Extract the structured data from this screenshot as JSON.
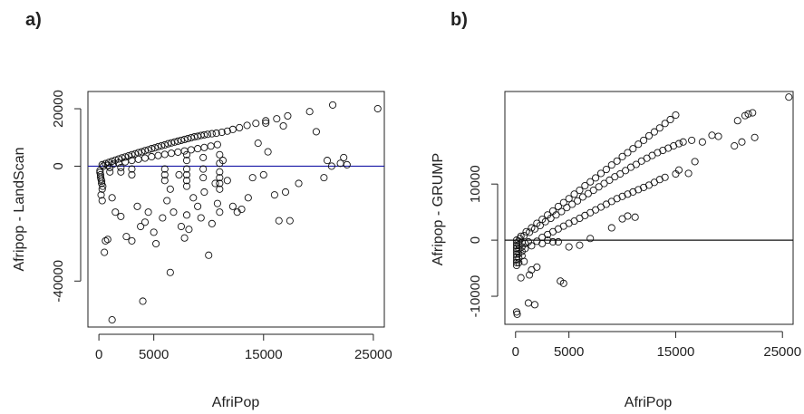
{
  "chart_data": [
    {
      "type": "scatter",
      "panel_label": "a)",
      "xlabel": "AfriPop",
      "ylabel": "Afripop - LandScan",
      "xlim": [
        -1000,
        26000
      ],
      "ylim": [
        -56000,
        26000
      ],
      "xticks": [
        0,
        5000,
        15000,
        25000
      ],
      "yticks": [
        -40000,
        0,
        20000
      ],
      "xtick_labels": [
        "0",
        "5000",
        "15000",
        "25000"
      ],
      "ytick_labels": [
        "-40000",
        "0",
        "20000"
      ],
      "reference_line": {
        "y": 0,
        "color": "#1a1aa6"
      },
      "marker_color": "#111111",
      "points": [
        [
          300,
          500
        ],
        [
          600,
          900
        ],
        [
          900,
          1300
        ],
        [
          1200,
          1700
        ],
        [
          1500,
          2100
        ],
        [
          1800,
          2500
        ],
        [
          2100,
          2900
        ],
        [
          2400,
          3200
        ],
        [
          2700,
          3600
        ],
        [
          3000,
          4000
        ],
        [
          3300,
          4300
        ],
        [
          3600,
          4700
        ],
        [
          3900,
          5000
        ],
        [
          4200,
          5400
        ],
        [
          4500,
          5700
        ],
        [
          4800,
          6100
        ],
        [
          5100,
          6400
        ],
        [
          5400,
          6800
        ],
        [
          5700,
          7100
        ],
        [
          6000,
          7400
        ],
        [
          6300,
          7800
        ],
        [
          6600,
          8100
        ],
        [
          6900,
          8400
        ],
        [
          7200,
          8700
        ],
        [
          7500,
          9000
        ],
        [
          7800,
          9300
        ],
        [
          8100,
          9600
        ],
        [
          8400,
          9900
        ],
        [
          8700,
          10200
        ],
        [
          9000,
          10400
        ],
        [
          9300,
          10700
        ],
        [
          9600,
          10900
        ],
        [
          9900,
          11100
        ],
        [
          10300,
          11300
        ],
        [
          10700,
          11500
        ],
        [
          11200,
          11800
        ],
        [
          11700,
          12200
        ],
        [
          12200,
          12800
        ],
        [
          12800,
          13400
        ],
        [
          13500,
          14200
        ],
        [
          14300,
          14900
        ],
        [
          15200,
          15800
        ],
        [
          16200,
          16500
        ],
        [
          17200,
          17500
        ],
        [
          19200,
          19000
        ],
        [
          21300,
          21300
        ],
        [
          25400,
          20000
        ],
        [
          400,
          0
        ],
        [
          800,
          300
        ],
        [
          1300,
          700
        ],
        [
          1800,
          1100
        ],
        [
          2400,
          1500
        ],
        [
          3000,
          2000
        ],
        [
          3600,
          2400
        ],
        [
          4200,
          2800
        ],
        [
          4800,
          3300
        ],
        [
          5400,
          3700
        ],
        [
          6000,
          4100
        ],
        [
          6600,
          4500
        ],
        [
          7200,
          4900
        ],
        [
          7800,
          5300
        ],
        [
          8400,
          5700
        ],
        [
          9000,
          6100
        ],
        [
          9600,
          6500
        ],
        [
          10200,
          7000
        ],
        [
          10800,
          7500
        ],
        [
          100,
          -1500
        ],
        [
          150,
          -3000
        ],
        [
          200,
          -4500
        ],
        [
          250,
          -6000
        ],
        [
          300,
          -8000
        ],
        [
          200,
          -10000
        ],
        [
          300,
          -12000
        ],
        [
          100,
          -2200
        ],
        [
          150,
          -3800
        ],
        [
          250,
          -5200
        ],
        [
          350,
          -7000
        ],
        [
          600,
          -26000
        ],
        [
          800,
          -25500
        ],
        [
          500,
          -30000
        ],
        [
          1200,
          -53500
        ],
        [
          4000,
          -47000
        ],
        [
          6500,
          -37000
        ],
        [
          1200,
          -11000
        ],
        [
          1500,
          -16000
        ],
        [
          2000,
          -17500
        ],
        [
          2500,
          -24500
        ],
        [
          3000,
          -26000
        ],
        [
          3500,
          -14000
        ],
        [
          3800,
          -21000
        ],
        [
          4200,
          -19500
        ],
        [
          4500,
          -16000
        ],
        [
          5000,
          -23000
        ],
        [
          5200,
          -27000
        ],
        [
          5800,
          -18000
        ],
        [
          6200,
          -12000
        ],
        [
          6500,
          -8000
        ],
        [
          6800,
          -16000
        ],
        [
          7300,
          -3000
        ],
        [
          7500,
          -21000
        ],
        [
          7800,
          -25000
        ],
        [
          8000,
          -17000
        ],
        [
          8200,
          -22000
        ],
        [
          8600,
          -11000
        ],
        [
          9000,
          -14000
        ],
        [
          9300,
          -18000
        ],
        [
          9600,
          -9000
        ],
        [
          10000,
          -31000
        ],
        [
          10300,
          -20000
        ],
        [
          10600,
          -6000
        ],
        [
          10800,
          -13000
        ],
        [
          11000,
          -16000
        ],
        [
          11300,
          2000
        ],
        [
          11700,
          -5000
        ],
        [
          12200,
          -14000
        ],
        [
          12600,
          -16000
        ],
        [
          13000,
          -15000
        ],
        [
          13600,
          -11000
        ],
        [
          14000,
          -4000
        ],
        [
          14500,
          8000
        ],
        [
          15000,
          -3000
        ],
        [
          15400,
          5000
        ],
        [
          16000,
          -10000
        ],
        [
          16400,
          -19000
        ],
        [
          17000,
          -9000
        ],
        [
          17400,
          -19000
        ],
        [
          18200,
          -6000
        ],
        [
          20500,
          -4000
        ],
        [
          20800,
          2000
        ],
        [
          21200,
          0
        ],
        [
          22000,
          1000
        ],
        [
          22300,
          3000
        ],
        [
          22600,
          500
        ],
        [
          19800,
          12000
        ],
        [
          16800,
          14000
        ],
        [
          15200,
          15000
        ],
        [
          11000,
          1000
        ],
        [
          11000,
          -2000
        ],
        [
          11000,
          -4000
        ],
        [
          11000,
          -6000
        ],
        [
          11000,
          -8000
        ],
        [
          11000,
          4000
        ],
        [
          8000,
          -1000
        ],
        [
          8000,
          -3000
        ],
        [
          8000,
          -5000
        ],
        [
          8000,
          -7000
        ],
        [
          8000,
          2000
        ],
        [
          8000,
          4000
        ],
        [
          9500,
          -1000
        ],
        [
          9500,
          -4000
        ],
        [
          9500,
          3000
        ],
        [
          6000,
          -1000
        ],
        [
          6000,
          -3000
        ],
        [
          6000,
          -5000
        ],
        [
          3000,
          -1000
        ],
        [
          3000,
          -3000
        ],
        [
          2000,
          -500
        ],
        [
          2000,
          -2000
        ],
        [
          1000,
          -500
        ],
        [
          1000,
          -2000
        ]
      ]
    },
    {
      "type": "scatter",
      "panel_label": "b)",
      "xlabel": "AfriPop",
      "ylabel": "Afripop - GRUMP",
      "xlim": [
        -1000,
        26000
      ],
      "ylim": [
        -15000,
        26500
      ],
      "xticks": [
        0,
        5000,
        15000,
        25000
      ],
      "yticks": [
        -10000,
        0,
        10000
      ],
      "xtick_labels": [
        "0",
        "5000",
        "15000",
        "25000"
      ],
      "ytick_labels": [
        "-10000",
        "0",
        "10000"
      ],
      "reference_line": {
        "y": 0,
        "color": "#111111"
      },
      "marker_color": "#111111",
      "points": [
        [
          500,
          700
        ],
        [
          1000,
          1500
        ],
        [
          1500,
          2200
        ],
        [
          2000,
          3000
        ],
        [
          2500,
          3700
        ],
        [
          3000,
          4500
        ],
        [
          3500,
          5200
        ],
        [
          4000,
          6000
        ],
        [
          4500,
          6700
        ],
        [
          5000,
          7400
        ],
        [
          5500,
          8200
        ],
        [
          6000,
          8900
        ],
        [
          6500,
          9700
        ],
        [
          7000,
          10400
        ],
        [
          7500,
          11100
        ],
        [
          8000,
          11900
        ],
        [
          8500,
          12600
        ],
        [
          9000,
          13400
        ],
        [
          9500,
          14100
        ],
        [
          10000,
          14900
        ],
        [
          10500,
          15600
        ],
        [
          11000,
          16300
        ],
        [
          11500,
          17100
        ],
        [
          12000,
          17800
        ],
        [
          12500,
          18600
        ],
        [
          13000,
          19300
        ],
        [
          13500,
          20000
        ],
        [
          14000,
          20800
        ],
        [
          14500,
          21500
        ],
        [
          15000,
          22300
        ],
        [
          400,
          300
        ],
        [
          800,
          800
        ],
        [
          1300,
          1400
        ],
        [
          1800,
          2000
        ],
        [
          2300,
          2600
        ],
        [
          2800,
          3300
        ],
        [
          3300,
          3900
        ],
        [
          3800,
          4500
        ],
        [
          4300,
          5100
        ],
        [
          4800,
          5800
        ],
        [
          5300,
          6400
        ],
        [
          5800,
          7000
        ],
        [
          6300,
          7700
        ],
        [
          6800,
          8300
        ],
        [
          7300,
          8900
        ],
        [
          7800,
          9500
        ],
        [
          8300,
          10100
        ],
        [
          8800,
          10700
        ],
        [
          9300,
          11300
        ],
        [
          9800,
          11800
        ],
        [
          10300,
          12400
        ],
        [
          10800,
          13000
        ],
        [
          11300,
          13500
        ],
        [
          11800,
          14100
        ],
        [
          12300,
          14600
        ],
        [
          12800,
          15100
        ],
        [
          13300,
          15600
        ],
        [
          13800,
          16000
        ],
        [
          14300,
          16400
        ],
        [
          14800,
          16800
        ],
        [
          15300,
          17200
        ],
        [
          15700,
          17500
        ],
        [
          16500,
          17800
        ],
        [
          18400,
          18700
        ],
        [
          19000,
          18500
        ],
        [
          20800,
          21300
        ],
        [
          21500,
          22200
        ],
        [
          21800,
          22500
        ],
        [
          22200,
          22700
        ],
        [
          22400,
          18300
        ],
        [
          25600,
          25500
        ],
        [
          2500,
          500
        ],
        [
          3000,
          1000
        ],
        [
          3500,
          1500
        ],
        [
          4000,
          2000
        ],
        [
          4500,
          2500
        ],
        [
          5000,
          3000
        ],
        [
          5500,
          3400
        ],
        [
          6000,
          3900
        ],
        [
          6500,
          4400
        ],
        [
          7000,
          4900
        ],
        [
          7500,
          5400
        ],
        [
          8000,
          5900
        ],
        [
          8500,
          6400
        ],
        [
          9000,
          6900
        ],
        [
          9500,
          7400
        ],
        [
          10000,
          7800
        ],
        [
          10500,
          8200
        ],
        [
          11000,
          8600
        ],
        [
          11500,
          9000
        ],
        [
          12000,
          9400
        ],
        [
          12500,
          9800
        ],
        [
          13000,
          10300
        ],
        [
          13500,
          10800
        ],
        [
          14000,
          11200
        ],
        [
          15000,
          11800
        ],
        [
          15300,
          12500
        ],
        [
          16200,
          11900
        ],
        [
          16800,
          14000
        ],
        [
          17500,
          17500
        ],
        [
          20500,
          16800
        ],
        [
          21200,
          17500
        ],
        [
          4000,
          -300
        ],
        [
          5000,
          -1200
        ],
        [
          6000,
          -900
        ],
        [
          7000,
          300
        ],
        [
          9000,
          2200
        ],
        [
          10000,
          3800
        ],
        [
          10500,
          4300
        ],
        [
          11200,
          4100
        ],
        [
          4200,
          -7300
        ],
        [
          4500,
          -7700
        ],
        [
          100,
          -12800
        ],
        [
          150,
          -13200
        ],
        [
          1200,
          -11200
        ],
        [
          1800,
          -11500
        ],
        [
          1500,
          -5300
        ],
        [
          2000,
          -4800
        ],
        [
          800,
          -3800
        ],
        [
          500,
          -6700
        ],
        [
          1300,
          -6200
        ],
        [
          100,
          0
        ],
        [
          100,
          -500
        ],
        [
          100,
          -1000
        ],
        [
          100,
          -1500
        ],
        [
          100,
          -2000
        ],
        [
          100,
          -2500
        ],
        [
          100,
          -3000
        ],
        [
          100,
          -3500
        ],
        [
          100,
          -4000
        ],
        [
          100,
          -4500
        ],
        [
          300,
          -200
        ],
        [
          300,
          -800
        ],
        [
          300,
          -1600
        ],
        [
          300,
          -2400
        ],
        [
          300,
          -3200
        ],
        [
          300,
          -4000
        ],
        [
          600,
          -400
        ],
        [
          600,
          -1200
        ],
        [
          600,
          -2000
        ],
        [
          600,
          -2800
        ],
        [
          900,
          -600
        ],
        [
          900,
          -1500
        ],
        [
          1200,
          -300
        ],
        [
          1500,
          -1000
        ],
        [
          2000,
          -200
        ],
        [
          2500,
          -600
        ],
        [
          3000,
          0
        ],
        [
          3500,
          -300
        ]
      ]
    }
  ]
}
